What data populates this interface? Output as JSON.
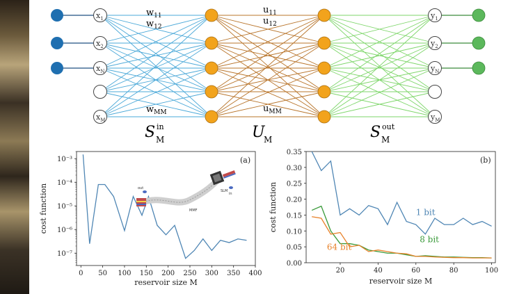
{
  "network": {
    "input_labels": [
      "x1",
      "x2",
      "xN",
      "",
      "xM"
    ],
    "input_sub": [
      "1",
      "2",
      "N",
      "",
      "M"
    ],
    "output_sub": [
      "1",
      "2",
      "N",
      "",
      "M"
    ],
    "w_labels": {
      "w11": "w",
      "w11_sub": "11",
      "w12": "w",
      "w12_sub": "12",
      "wMM": "w",
      "wMM_sub": "MM"
    },
    "u_labels": {
      "u11": "u",
      "u11_sub": "11",
      "u12": "u",
      "u12_sub": "12",
      "uMM": "u",
      "uMM_sub": "MM"
    },
    "block_labels": {
      "s_in": "S",
      "s_in_sub": "M",
      "s_in_sup": "in",
      "u": "U",
      "u_sub": "M",
      "s_out": "S",
      "s_out_sub": "M",
      "s_out_sup": "out"
    },
    "colors": {
      "input": "#1f6fb0",
      "hidden": "#f2a31c",
      "output": "#5cb85c",
      "w_edges": "#4aa8d8",
      "u_edges": "#b8742a",
      "s_out_edges": "#7ed66a"
    }
  },
  "chart_data": [
    {
      "type": "line",
      "panel_label": "(a)",
      "xlabel": "reservoir size M",
      "ylabel": "cost function",
      "y_scale": "log",
      "ylim": [
        3e-08,
        0.002
      ],
      "xlim": [
        -10,
        400
      ],
      "x_ticks": [
        "0",
        "50",
        "100",
        "150",
        "200",
        "250",
        "300",
        "350",
        "400"
      ],
      "y_ticks": [
        "10⁻³",
        "10⁻⁴",
        "10⁻⁵",
        "10⁻⁶",
        "10⁻⁷"
      ],
      "series": [
        {
          "color": "#4f86b4",
          "x": [
            5,
            20,
            40,
            55,
            75,
            100,
            120,
            140,
            155,
            175,
            195,
            215,
            240,
            260,
            280,
            300,
            320,
            340,
            360,
            380
          ],
          "y": [
            0.0015,
            2.5e-07,
            8e-05,
            8e-05,
            2.5e-05,
            9e-07,
            2.5e-05,
            4e-06,
            2.5e-05,
            1.5e-06,
            6e-07,
            1.5e-06,
            6e-08,
            1.3e-07,
            4e-07,
            1.3e-07,
            3.5e-07,
            2.8e-07,
            4e-07,
            3.5e-07
          ]
        }
      ],
      "inset_labels": {
        "out": "out",
        "in": "in",
        "mmf": "MMF",
        "slm": "SLM"
      }
    },
    {
      "type": "line",
      "panel_label": "(b)",
      "xlabel": "reservoir size M",
      "ylabel": "cost function",
      "xlim": [
        0,
        100
      ],
      "ylim": [
        0,
        0.35
      ],
      "x_ticks": [
        "20",
        "40",
        "60",
        "80",
        "100"
      ],
      "y_ticks": [
        "0.00",
        "0.05",
        "0.10",
        "0.15",
        "0.20",
        "0.25",
        "0.30",
        "0.35"
      ],
      "series": [
        {
          "name": "1 bit",
          "color": "#4f86b4",
          "x": [
            5,
            10,
            15,
            20,
            25,
            30,
            35,
            40,
            45,
            50,
            55,
            60,
            65,
            70,
            75,
            80,
            85,
            90,
            95,
            100
          ],
          "y": [
            0.35,
            0.29,
            0.32,
            0.15,
            0.17,
            0.15,
            0.18,
            0.17,
            0.12,
            0.19,
            0.13,
            0.12,
            0.09,
            0.14,
            0.12,
            0.12,
            0.14,
            0.12,
            0.13,
            0.115
          ]
        },
        {
          "name": "8 bit",
          "color": "#3a9a3a",
          "x": [
            5,
            10,
            15,
            20,
            25,
            30,
            35,
            40,
            45,
            50,
            55,
            60,
            65,
            70,
            75,
            80,
            85,
            90,
            95,
            100
          ],
          "y": [
            0.165,
            0.178,
            0.1,
            0.06,
            0.06,
            0.055,
            0.04,
            0.035,
            0.03,
            0.03,
            0.025,
            0.02,
            0.022,
            0.02,
            0.018,
            0.018,
            0.017,
            0.016,
            0.016,
            0.015
          ]
        },
        {
          "name": "64 bit",
          "color": "#e8822a",
          "x": [
            5,
            10,
            15,
            20,
            25,
            30,
            35,
            40,
            45,
            50,
            55,
            60,
            65,
            70,
            75,
            80,
            85,
            90,
            95,
            100
          ],
          "y": [
            0.145,
            0.14,
            0.09,
            0.095,
            0.05,
            0.055,
            0.035,
            0.04,
            0.035,
            0.03,
            0.028,
            0.02,
            0.02,
            0.018,
            0.017,
            0.016,
            0.016,
            0.015,
            0.015,
            0.015
          ]
        }
      ]
    }
  ]
}
